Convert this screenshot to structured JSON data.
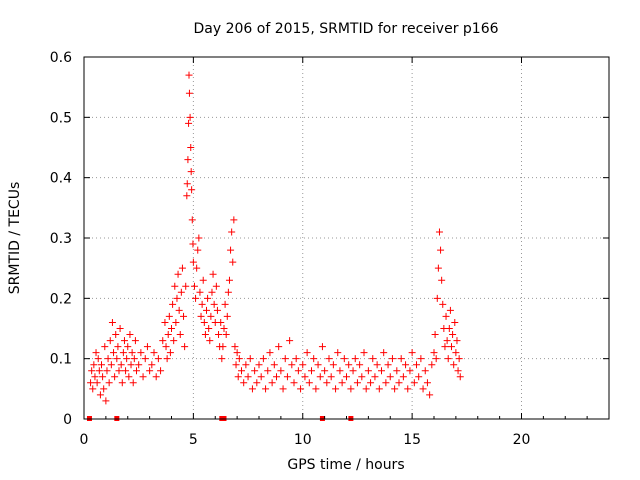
{
  "chart_data": {
    "type": "scatter",
    "title": "Day 206 of 2015, SRMTID for receiver p166",
    "xlabel": "GPS time / hours",
    "ylabel": "SRMTID / TECUs",
    "xlim": [
      0,
      24
    ],
    "ylim": [
      0,
      0.6
    ],
    "xticks": [
      0,
      5,
      10,
      15,
      20
    ],
    "yticks": [
      0,
      0.1,
      0.2,
      0.3,
      0.4,
      0.5,
      0.6
    ],
    "xtick_labels": [
      "0",
      "5",
      "10",
      "15",
      "20"
    ],
    "ytick_labels": [
      "0",
      "0.1",
      "0.2",
      "0.3",
      "0.4",
      "0.5",
      "0.6"
    ],
    "grid": true,
    "marker": "plus",
    "color": "#ff0000",
    "baseline_markers_x": [
      0.25,
      1.5,
      6.3,
      6.4,
      10.9,
      12.2
    ],
    "series": [
      {
        "name": "SRMTID",
        "points": [
          [
            0.3,
            0.06
          ],
          [
            0.35,
            0.08
          ],
          [
            0.4,
            0.05
          ],
          [
            0.45,
            0.09
          ],
          [
            0.5,
            0.07
          ],
          [
            0.55,
            0.11
          ],
          [
            0.6,
            0.06
          ],
          [
            0.65,
            0.1
          ],
          [
            0.7,
            0.08
          ],
          [
            0.75,
            0.04
          ],
          [
            0.8,
            0.09
          ],
          [
            0.85,
            0.07
          ],
          [
            0.9,
            0.05
          ],
          [
            0.95,
            0.12
          ],
          [
            1.0,
            0.03
          ],
          [
            1.05,
            0.08
          ],
          [
            1.1,
            0.1
          ],
          [
            1.15,
            0.06
          ],
          [
            1.2,
            0.13
          ],
          [
            1.25,
            0.09
          ],
          [
            1.3,
            0.16
          ],
          [
            1.35,
            0.11
          ],
          [
            1.4,
            0.07
          ],
          [
            1.45,
            0.14
          ],
          [
            1.5,
            0.1
          ],
          [
            1.55,
            0.12
          ],
          [
            1.6,
            0.08
          ],
          [
            1.65,
            0.15
          ],
          [
            1.7,
            0.09
          ],
          [
            1.75,
            0.06
          ],
          [
            1.8,
            0.11
          ],
          [
            1.85,
            0.13
          ],
          [
            1.9,
            0.08
          ],
          [
            1.95,
            0.1
          ],
          [
            2.0,
            0.12
          ],
          [
            2.05,
            0.07
          ],
          [
            2.1,
            0.14
          ],
          [
            2.15,
            0.09
          ],
          [
            2.2,
            0.11
          ],
          [
            2.25,
            0.06
          ],
          [
            2.3,
            0.1
          ],
          [
            2.35,
            0.13
          ],
          [
            2.4,
            0.08
          ],
          [
            2.5,
            0.09
          ],
          [
            2.6,
            0.11
          ],
          [
            2.7,
            0.07
          ],
          [
            2.8,
            0.1
          ],
          [
            2.9,
            0.12
          ],
          [
            3.0,
            0.08
          ],
          [
            3.1,
            0.09
          ],
          [
            3.2,
            0.11
          ],
          [
            3.3,
            0.07
          ],
          [
            3.4,
            0.1
          ],
          [
            3.5,
            0.08
          ],
          [
            3.6,
            0.13
          ],
          [
            3.7,
            0.16
          ],
          [
            3.75,
            0.12
          ],
          [
            3.8,
            0.1
          ],
          [
            3.85,
            0.14
          ],
          [
            3.9,
            0.17
          ],
          [
            3.95,
            0.11
          ],
          [
            4.0,
            0.15
          ],
          [
            4.05,
            0.19
          ],
          [
            4.1,
            0.13
          ],
          [
            4.15,
            0.22
          ],
          [
            4.2,
            0.16
          ],
          [
            4.25,
            0.2
          ],
          [
            4.3,
            0.24
          ],
          [
            4.35,
            0.18
          ],
          [
            4.4,
            0.14
          ],
          [
            4.45,
            0.21
          ],
          [
            4.5,
            0.25
          ],
          [
            4.55,
            0.17
          ],
          [
            4.6,
            0.12
          ],
          [
            4.65,
            0.22
          ],
          [
            4.7,
            0.37
          ],
          [
            4.72,
            0.39
          ],
          [
            4.75,
            0.43
          ],
          [
            4.78,
            0.49
          ],
          [
            4.8,
            0.57
          ],
          [
            4.82,
            0.54
          ],
          [
            4.85,
            0.5
          ],
          [
            4.88,
            0.45
          ],
          [
            4.9,
            0.41
          ],
          [
            4.92,
            0.38
          ],
          [
            4.95,
            0.33
          ],
          [
            4.98,
            0.29
          ],
          [
            5.0,
            0.26
          ],
          [
            5.05,
            0.22
          ],
          [
            5.1,
            0.2
          ],
          [
            5.15,
            0.25
          ],
          [
            5.2,
            0.28
          ],
          [
            5.25,
            0.3
          ],
          [
            5.3,
            0.21
          ],
          [
            5.35,
            0.17
          ],
          [
            5.4,
            0.19
          ],
          [
            5.45,
            0.23
          ],
          [
            5.5,
            0.16
          ],
          [
            5.55,
            0.14
          ],
          [
            5.6,
            0.18
          ],
          [
            5.65,
            0.2
          ],
          [
            5.7,
            0.15
          ],
          [
            5.75,
            0.13
          ],
          [
            5.8,
            0.17
          ],
          [
            5.85,
            0.21
          ],
          [
            5.9,
            0.24
          ],
          [
            5.95,
            0.19
          ],
          [
            6.0,
            0.16
          ],
          [
            6.05,
            0.22
          ],
          [
            6.1,
            0.18
          ],
          [
            6.15,
            0.14
          ],
          [
            6.2,
            0.12
          ],
          [
            6.25,
            0.16
          ],
          [
            6.3,
            0.1
          ],
          [
            6.35,
            0.12
          ],
          [
            6.4,
            0.15
          ],
          [
            6.45,
            0.19
          ],
          [
            6.5,
            0.14
          ],
          [
            6.55,
            0.17
          ],
          [
            6.6,
            0.21
          ],
          [
            6.65,
            0.23
          ],
          [
            6.7,
            0.28
          ],
          [
            6.75,
            0.31
          ],
          [
            6.8,
            0.26
          ],
          [
            6.85,
            0.33
          ],
          [
            6.9,
            0.12
          ],
          [
            6.95,
            0.09
          ],
          [
            7.0,
            0.11
          ],
          [
            7.05,
            0.07
          ],
          [
            7.1,
            0.1
          ],
          [
            7.2,
            0.08
          ],
          [
            7.3,
            0.06
          ],
          [
            7.4,
            0.09
          ],
          [
            7.5,
            0.07
          ],
          [
            7.6,
            0.1
          ],
          [
            7.7,
            0.05
          ],
          [
            7.8,
            0.08
          ],
          [
            7.9,
            0.06
          ],
          [
            8.0,
            0.09
          ],
          [
            8.1,
            0.07
          ],
          [
            8.2,
            0.1
          ],
          [
            8.3,
            0.05
          ],
          [
            8.4,
            0.08
          ],
          [
            8.5,
            0.11
          ],
          [
            8.6,
            0.06
          ],
          [
            8.7,
            0.09
          ],
          [
            8.8,
            0.07
          ],
          [
            8.9,
            0.12
          ],
          [
            9.0,
            0.08
          ],
          [
            9.1,
            0.05
          ],
          [
            9.2,
            0.1
          ],
          [
            9.3,
            0.07
          ],
          [
            9.4,
            0.13
          ],
          [
            9.5,
            0.09
          ],
          [
            9.6,
            0.06
          ],
          [
            9.7,
            0.1
          ],
          [
            9.8,
            0.08
          ],
          [
            9.9,
            0.05
          ],
          [
            10.0,
            0.09
          ],
          [
            10.1,
            0.07
          ],
          [
            10.2,
            0.11
          ],
          [
            10.3,
            0.06
          ],
          [
            10.4,
            0.08
          ],
          [
            10.5,
            0.1
          ],
          [
            10.6,
            0.05
          ],
          [
            10.7,
            0.09
          ],
          [
            10.8,
            0.07
          ],
          [
            10.9,
            0.12
          ],
          [
            11.0,
            0.08
          ],
          [
            11.1,
            0.06
          ],
          [
            11.2,
            0.1
          ],
          [
            11.3,
            0.07
          ],
          [
            11.4,
            0.09
          ],
          [
            11.5,
            0.05
          ],
          [
            11.6,
            0.11
          ],
          [
            11.7,
            0.08
          ],
          [
            11.8,
            0.06
          ],
          [
            11.9,
            0.1
          ],
          [
            12.0,
            0.07
          ],
          [
            12.1,
            0.09
          ],
          [
            12.2,
            0.05
          ],
          [
            12.3,
            0.08
          ],
          [
            12.4,
            0.1
          ],
          [
            12.5,
            0.06
          ],
          [
            12.6,
            0.09
          ],
          [
            12.7,
            0.07
          ],
          [
            12.8,
            0.11
          ],
          [
            12.9,
            0.05
          ],
          [
            13.0,
            0.08
          ],
          [
            13.1,
            0.06
          ],
          [
            13.2,
            0.1
          ],
          [
            13.3,
            0.07
          ],
          [
            13.4,
            0.09
          ],
          [
            13.5,
            0.05
          ],
          [
            13.6,
            0.08
          ],
          [
            13.7,
            0.11
          ],
          [
            13.8,
            0.06
          ],
          [
            13.9,
            0.09
          ],
          [
            14.0,
            0.07
          ],
          [
            14.1,
            0.1
          ],
          [
            14.2,
            0.05
          ],
          [
            14.3,
            0.08
          ],
          [
            14.4,
            0.06
          ],
          [
            14.5,
            0.1
          ],
          [
            14.6,
            0.07
          ],
          [
            14.7,
            0.09
          ],
          [
            14.8,
            0.05
          ],
          [
            14.9,
            0.08
          ],
          [
            15.0,
            0.11
          ],
          [
            15.1,
            0.06
          ],
          [
            15.2,
            0.09
          ],
          [
            15.3,
            0.07
          ],
          [
            15.4,
            0.1
          ],
          [
            15.5,
            0.05
          ],
          [
            15.6,
            0.08
          ],
          [
            15.7,
            0.06
          ],
          [
            15.8,
            0.04
          ],
          [
            15.9,
            0.09
          ],
          [
            16.0,
            0.11
          ],
          [
            16.05,
            0.14
          ],
          [
            16.1,
            0.1
          ],
          [
            16.15,
            0.2
          ],
          [
            16.2,
            0.25
          ],
          [
            16.25,
            0.31
          ],
          [
            16.3,
            0.28
          ],
          [
            16.35,
            0.23
          ],
          [
            16.4,
            0.19
          ],
          [
            16.45,
            0.15
          ],
          [
            16.5,
            0.12
          ],
          [
            16.55,
            0.17
          ],
          [
            16.6,
            0.13
          ],
          [
            16.65,
            0.1
          ],
          [
            16.7,
            0.15
          ],
          [
            16.75,
            0.18
          ],
          [
            16.8,
            0.12
          ],
          [
            16.85,
            0.14
          ],
          [
            16.9,
            0.09
          ],
          [
            16.95,
            0.16
          ],
          [
            17.0,
            0.11
          ],
          [
            17.05,
            0.13
          ],
          [
            17.1,
            0.08
          ],
          [
            17.15,
            0.1
          ],
          [
            17.2,
            0.07
          ]
        ]
      }
    ]
  }
}
